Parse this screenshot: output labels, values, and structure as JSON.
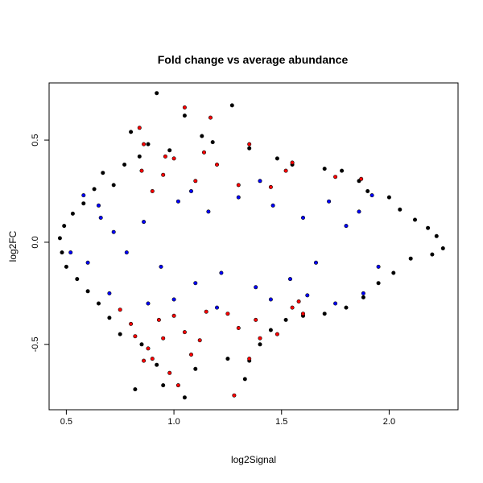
{
  "chart_data": {
    "type": "scatter",
    "title": "Fold change vs average abundance",
    "xlabel": "log2Signal",
    "ylabel": "log2FC",
    "xlim": [
      0.42,
      2.32
    ],
    "ylim": [
      -0.82,
      0.78
    ],
    "xticks": [
      0.5,
      1.0,
      1.5,
      2.0
    ],
    "xtick_labels": [
      "0.5",
      "1.0",
      "1.5",
      "2.0"
    ],
    "yticks": [
      -0.5,
      0.0,
      0.5
    ],
    "ytick_labels": [
      "-0.5",
      "0.0",
      "0.5"
    ],
    "grid": false,
    "legend": "none",
    "colors": {
      "all": "#000000",
      "highlight_blue": "#0000ff",
      "highlight_red": "#ff0000"
    },
    "series": [
      {
        "color": "#000000",
        "points": [
          [
            0.92,
            0.73
          ],
          [
            0.8,
            0.54
          ],
          [
            1.27,
            0.67
          ],
          [
            1.05,
            0.62
          ],
          [
            0.88,
            0.48
          ],
          [
            0.98,
            0.45
          ],
          [
            1.13,
            0.52
          ],
          [
            1.18,
            0.49
          ],
          [
            1.35,
            0.46
          ],
          [
            1.48,
            0.41
          ],
          [
            1.55,
            0.38
          ],
          [
            1.7,
            0.36
          ],
          [
            1.78,
            0.35
          ],
          [
            1.86,
            0.3
          ],
          [
            1.9,
            0.25
          ],
          [
            2.0,
            0.22
          ],
          [
            2.05,
            0.16
          ],
          [
            2.12,
            0.11
          ],
          [
            2.18,
            0.07
          ],
          [
            2.22,
            0.03
          ],
          [
            2.25,
            -0.03
          ],
          [
            2.2,
            -0.06
          ],
          [
            2.1,
            -0.08
          ],
          [
            2.02,
            -0.15
          ],
          [
            1.95,
            -0.2
          ],
          [
            1.88,
            -0.27
          ],
          [
            1.8,
            -0.32
          ],
          [
            1.7,
            -0.35
          ],
          [
            1.6,
            -0.36
          ],
          [
            1.52,
            -0.38
          ],
          [
            1.45,
            -0.43
          ],
          [
            1.4,
            -0.5
          ],
          [
            1.35,
            -0.58
          ],
          [
            1.33,
            -0.67
          ],
          [
            1.25,
            -0.57
          ],
          [
            1.1,
            -0.62
          ],
          [
            1.05,
            -0.76
          ],
          [
            0.95,
            -0.7
          ],
          [
            0.92,
            -0.6
          ],
          [
            0.85,
            -0.5
          ],
          [
            0.82,
            -0.72
          ],
          [
            0.75,
            -0.45
          ],
          [
            0.7,
            -0.37
          ],
          [
            0.65,
            -0.3
          ],
          [
            0.6,
            -0.24
          ],
          [
            0.55,
            -0.18
          ],
          [
            0.5,
            -0.12
          ],
          [
            0.48,
            -0.05
          ],
          [
            0.47,
            0.02
          ],
          [
            0.49,
            0.08
          ],
          [
            0.53,
            0.14
          ],
          [
            0.58,
            0.19
          ],
          [
            0.63,
            0.26
          ],
          [
            0.67,
            0.34
          ],
          [
            0.72,
            0.28
          ],
          [
            0.77,
            0.38
          ],
          [
            0.84,
            0.42
          ]
        ]
      },
      {
        "color": "#0000ff",
        "points": [
          [
            0.58,
            0.23
          ],
          [
            0.66,
            0.12
          ],
          [
            0.72,
            0.05
          ],
          [
            0.78,
            -0.05
          ],
          [
            0.86,
            0.1
          ],
          [
            0.94,
            -0.12
          ],
          [
            1.02,
            0.2
          ],
          [
            1.1,
            -0.2
          ],
          [
            1.16,
            0.15
          ],
          [
            1.22,
            -0.15
          ],
          [
            1.3,
            0.22
          ],
          [
            1.38,
            -0.22
          ],
          [
            1.46,
            0.18
          ],
          [
            1.54,
            -0.18
          ],
          [
            1.6,
            0.12
          ],
          [
            1.66,
            -0.1
          ],
          [
            1.72,
            0.2
          ],
          [
            1.8,
            0.08
          ],
          [
            1.86,
            0.15
          ],
          [
            1.92,
            0.23
          ],
          [
            1.95,
            -0.12
          ],
          [
            1.88,
            -0.25
          ],
          [
            1.75,
            -0.3
          ],
          [
            0.6,
            -0.1
          ],
          [
            0.52,
            -0.05
          ],
          [
            0.7,
            -0.25
          ],
          [
            0.88,
            -0.3
          ],
          [
            1.0,
            -0.28
          ],
          [
            1.2,
            -0.32
          ],
          [
            1.4,
            0.3
          ],
          [
            1.45,
            -0.28
          ],
          [
            1.62,
            -0.26
          ],
          [
            0.65,
            0.18
          ],
          [
            1.08,
            0.25
          ]
        ]
      },
      {
        "color": "#ff0000",
        "points": [
          [
            1.05,
            0.66
          ],
          [
            0.84,
            0.56
          ],
          [
            1.17,
            0.61
          ],
          [
            1.0,
            0.41
          ],
          [
            0.95,
            0.33
          ],
          [
            1.1,
            0.3
          ],
          [
            0.9,
            0.25
          ],
          [
            0.85,
            0.35
          ],
          [
            1.2,
            0.38
          ],
          [
            1.35,
            0.48
          ],
          [
            1.55,
            0.39
          ],
          [
            1.52,
            0.35
          ],
          [
            1.75,
            0.32
          ],
          [
            1.87,
            0.31
          ],
          [
            1.3,
            0.28
          ],
          [
            1.45,
            0.27
          ],
          [
            1.55,
            -0.32
          ],
          [
            1.48,
            -0.45
          ],
          [
            1.38,
            -0.38
          ],
          [
            1.3,
            -0.42
          ],
          [
            1.25,
            -0.35
          ],
          [
            1.15,
            -0.34
          ],
          [
            1.05,
            -0.44
          ],
          [
            1.0,
            -0.36
          ],
          [
            0.95,
            -0.47
          ],
          [
            0.9,
            -0.57
          ],
          [
            0.86,
            -0.58
          ],
          [
            0.82,
            -0.46
          ],
          [
            0.75,
            -0.33
          ],
          [
            0.8,
            -0.4
          ],
          [
            1.08,
            -0.55
          ],
          [
            1.28,
            -0.75
          ],
          [
            1.02,
            -0.7
          ],
          [
            0.98,
            -0.64
          ],
          [
            1.12,
            -0.48
          ],
          [
            1.35,
            -0.57
          ],
          [
            1.4,
            -0.47
          ],
          [
            0.86,
            0.48
          ],
          [
            0.96,
            0.42
          ],
          [
            1.14,
            0.44
          ],
          [
            1.6,
            -0.35
          ],
          [
            1.58,
            -0.29
          ],
          [
            0.93,
            -0.38
          ],
          [
            0.88,
            -0.52
          ]
        ]
      }
    ]
  }
}
